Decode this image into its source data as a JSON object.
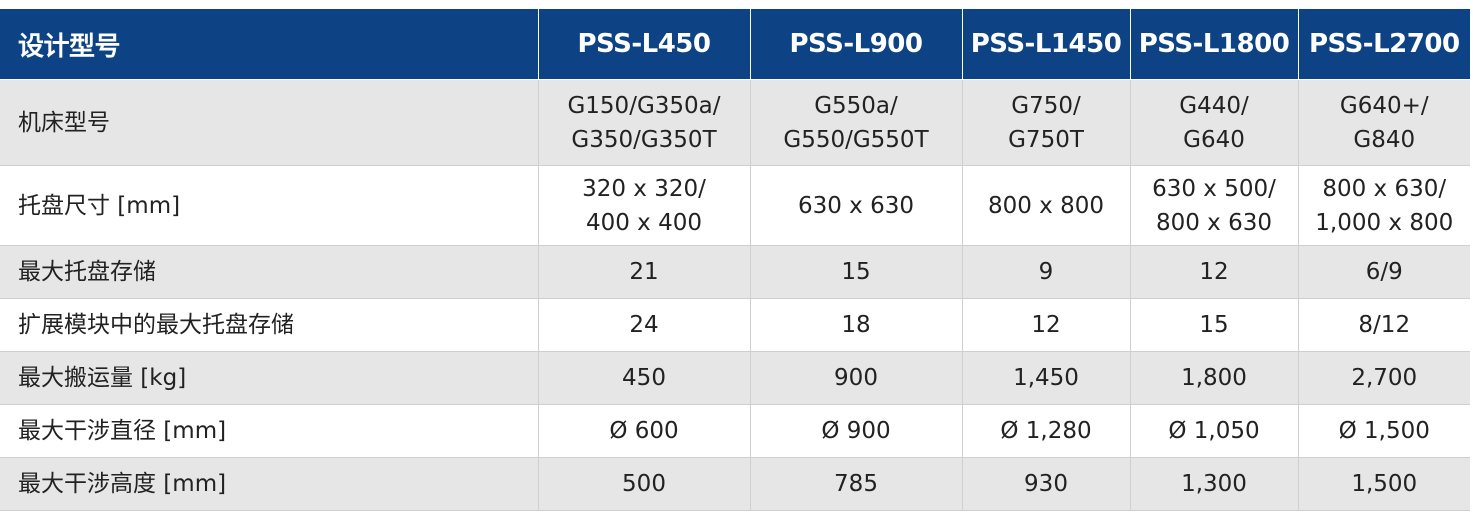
{
  "table": {
    "header": {
      "label": "设计型号",
      "models": [
        "PSS-L450",
        "PSS-L900",
        "PSS-L1450",
        "PSS-L1800",
        "PSS-L2700"
      ]
    },
    "rows": [
      {
        "label": "机床型号",
        "values": [
          "G150/G350a/\nG350/G350T",
          "G550a/\nG550/G550T",
          "G750/\nG750T",
          "G440/\nG640",
          "G640+/\nG840"
        ]
      },
      {
        "label": "托盘尺寸 [mm]",
        "values": [
          "320 x 320/\n400 x 400",
          "630 x 630",
          "800 x 800",
          "630 x 500/\n800 x 630",
          "800 x 630/\n1,000 x 800"
        ]
      },
      {
        "label": "最大托盘存储",
        "values": [
          "21",
          "15",
          "9",
          "12",
          "6/9"
        ]
      },
      {
        "label": "扩展模块中的最大托盘存储",
        "values": [
          "24",
          "18",
          "12",
          "15",
          "8/12"
        ]
      },
      {
        "label": "最大搬运量 [kg]",
        "values": [
          "450",
          "900",
          "1,450",
          "1,800",
          "2,700"
        ]
      },
      {
        "label": "最大干涉直径 [mm]",
        "values": [
          "Ø 600",
          "Ø 900",
          "Ø 1,280",
          "Ø 1,050",
          "Ø 1,500"
        ]
      },
      {
        "label": "最大干涉高度 [mm]",
        "values": [
          "500",
          "785",
          "930",
          "1,300",
          "1,500"
        ]
      }
    ]
  },
  "colors": {
    "header_bg": "#0d4384",
    "header_text": "#ffffff",
    "row_shade": "#e6e6e6",
    "row_plain": "#ffffff",
    "grid_line": "#cfcfcf"
  }
}
